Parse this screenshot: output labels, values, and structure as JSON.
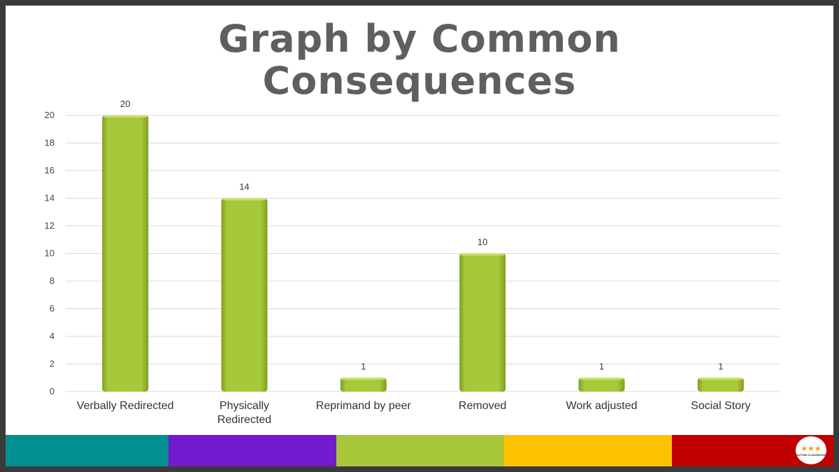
{
  "slide": {
    "title_line1": "Graph by Common",
    "title_line2": "Consequences"
  },
  "colors": {
    "bar": "#a6c83a",
    "bar_dark": "#7f9e22",
    "grid": "#d9d9d9",
    "title": "#5f5f5f",
    "stripes": [
      "#00908f",
      "#7319d0",
      "#a6c83a",
      "#fec200",
      "#c00000"
    ]
  },
  "chart_data": {
    "type": "bar",
    "title": "Graph by Common Consequences",
    "categories": [
      "Verbally Redirected",
      "Physically Redirected",
      "Reprimand by peer",
      "Removed",
      "Work adjusted",
      "Social Story"
    ],
    "category_lines": [
      [
        "Verbally Redirected"
      ],
      [
        "Physically",
        "Redirected"
      ],
      [
        "Reprimand by peer"
      ],
      [
        "Removed"
      ],
      [
        "Work adjusted"
      ],
      [
        "Social Story"
      ]
    ],
    "values": [
      20,
      14,
      1,
      10,
      1,
      1
    ],
    "data_labels": [
      "20",
      "14",
      "1",
      "10",
      "1",
      "1"
    ],
    "ylim": [
      0,
      20
    ],
    "yticks": [
      0,
      2,
      4,
      6,
      8,
      10,
      12,
      14,
      16,
      18,
      20
    ],
    "grid": true,
    "legend": "none"
  },
  "logo": {
    "icon": "stars-icon",
    "text": "AUTISM CLASSROOM"
  }
}
